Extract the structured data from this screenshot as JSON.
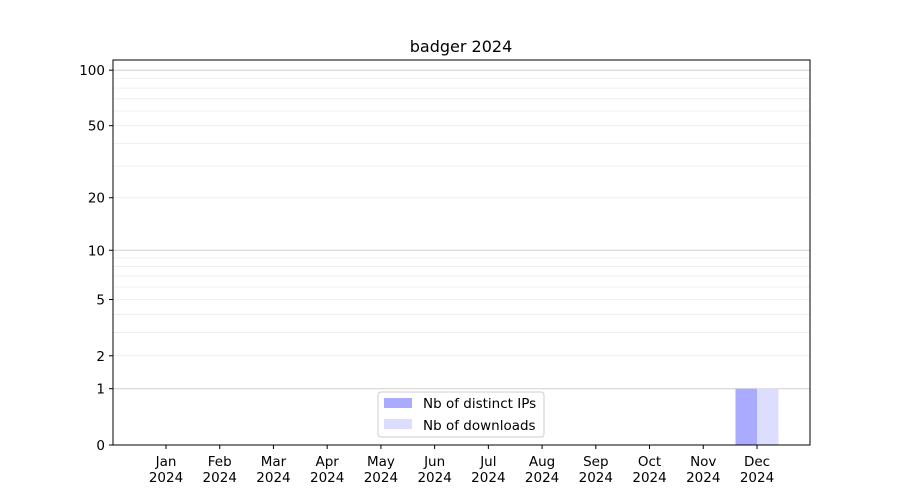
{
  "chart_data": {
    "type": "bar",
    "title": "badger 2024",
    "xlabel": "",
    "ylabel": "",
    "categories": [
      "Jan\n2024",
      "Feb\n2024",
      "Mar\n2024",
      "Apr\n2024",
      "May\n2024",
      "Jun\n2024",
      "Jul\n2024",
      "Aug\n2024",
      "Sep\n2024",
      "Oct\n2024",
      "Nov\n2024",
      "Dec\n2024"
    ],
    "series": [
      {
        "name": "Nb of distinct IPs",
        "color": "#aaaaff",
        "values": [
          0,
          0,
          0,
          0,
          0,
          0,
          0,
          0,
          0,
          0,
          0,
          1
        ]
      },
      {
        "name": "Nb of downloads",
        "color": "#ddddff",
        "values": [
          0,
          0,
          0,
          0,
          0,
          0,
          0,
          0,
          0,
          0,
          0,
          1
        ]
      }
    ],
    "yscale": "symlog (log of 1+y)",
    "ylim": [
      0,
      114
    ],
    "yticks": [
      0,
      1,
      2,
      5,
      10,
      20,
      50,
      100
    ],
    "ytick_labels": [
      "0",
      "1",
      "2",
      "5",
      "10",
      "20",
      "50",
      "100"
    ],
    "grid": true,
    "legend_position": "bottom-center"
  }
}
